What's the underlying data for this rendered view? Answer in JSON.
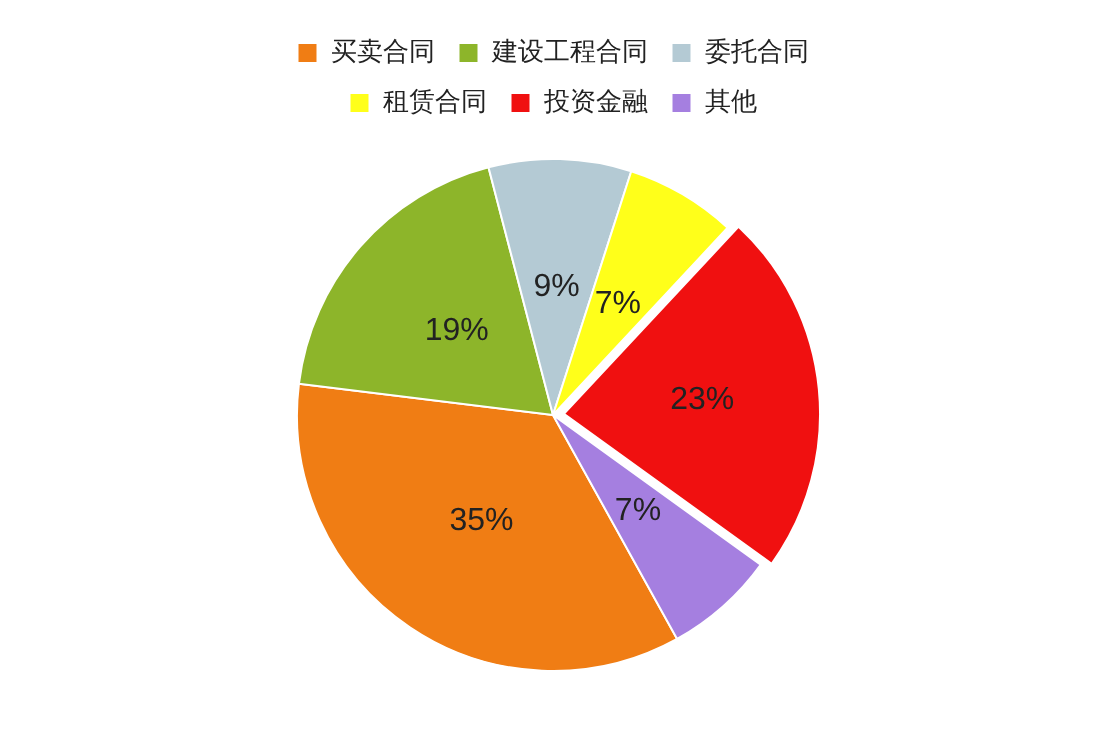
{
  "chart_data": {
    "type": "pie",
    "categories": [
      "买卖合同",
      "建设工程合同",
      "委托合同",
      "租赁合同",
      "投资金融",
      "其他"
    ],
    "values": [
      35,
      19,
      9,
      7,
      23,
      7
    ],
    "colors": [
      "#f07d14",
      "#8db52a",
      "#b4cad4",
      "#ffff1a",
      "#f01010",
      "#a57fe0"
    ],
    "value_labels": [
      "35%",
      "19%",
      "9%",
      "7%",
      "23%",
      "7%"
    ],
    "legend": "top"
  }
}
